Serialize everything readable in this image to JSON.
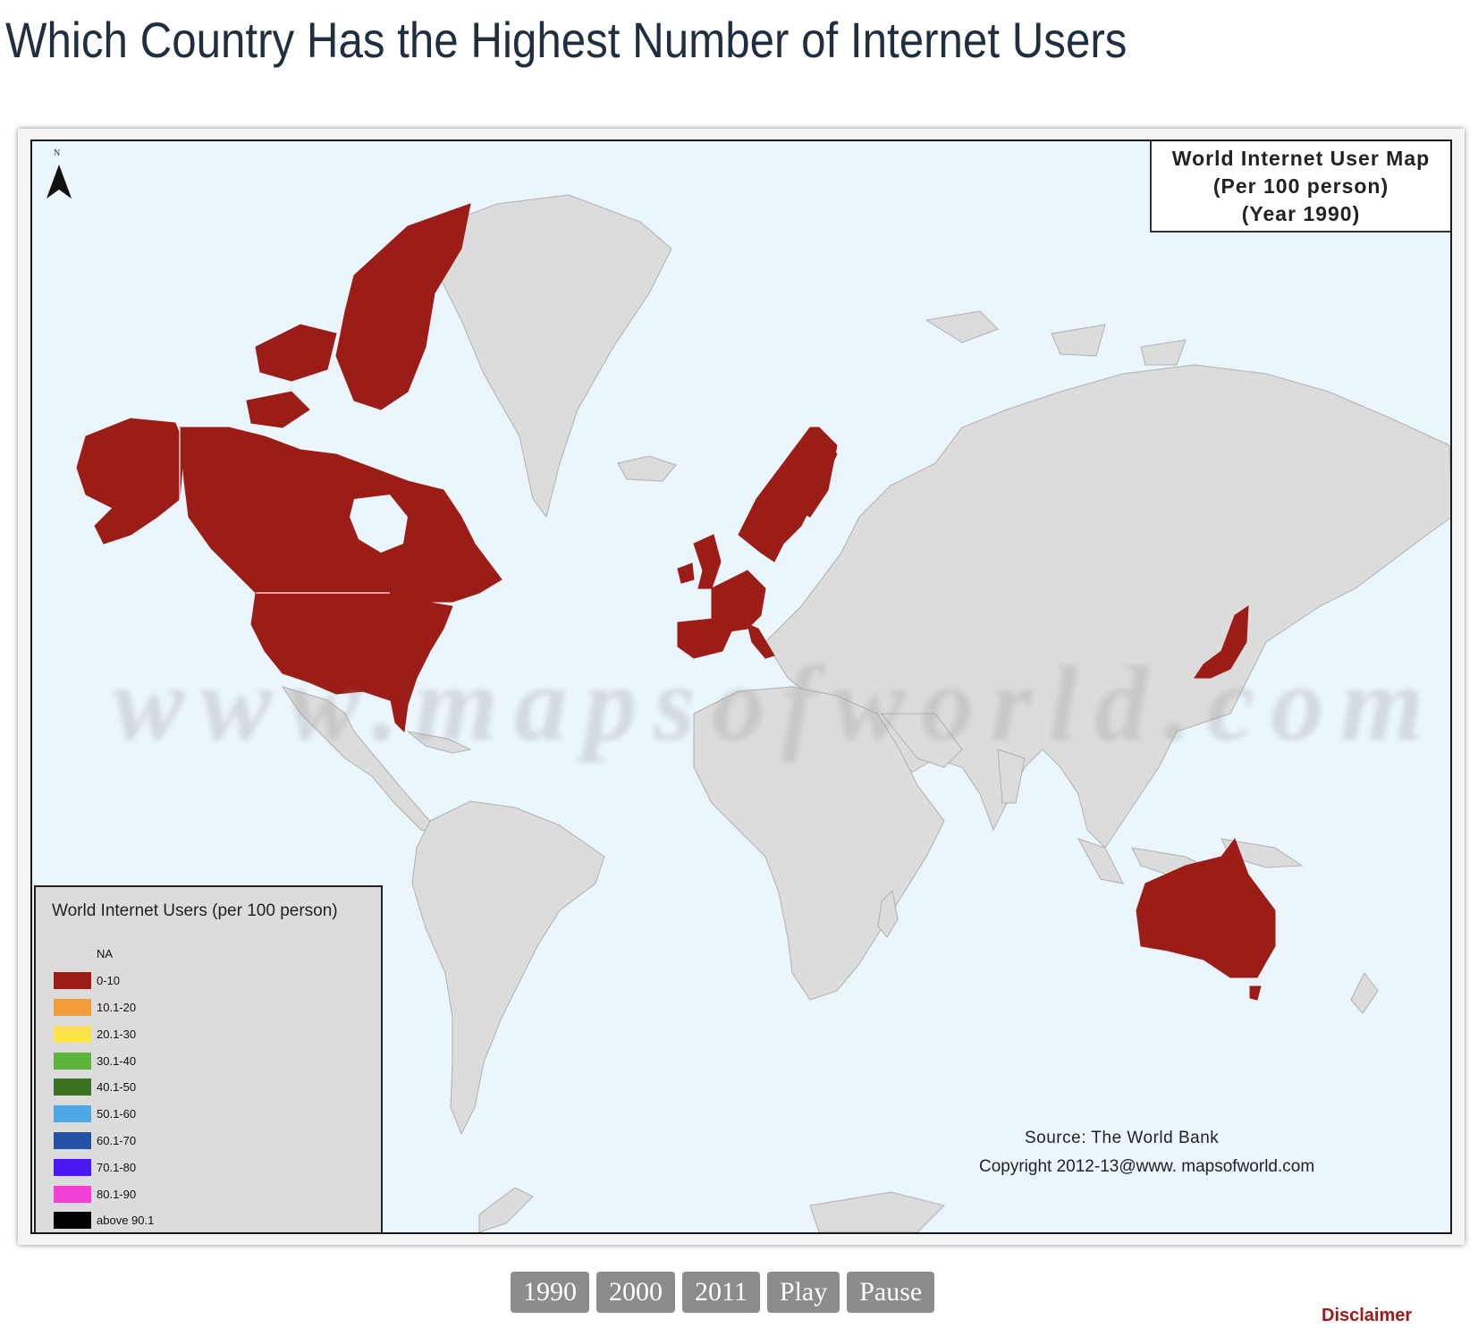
{
  "page": {
    "title": "Which Country Has the Highest Number of Internet Users"
  },
  "map": {
    "title_lines": [
      "World Internet User Map",
      "(Per 100 person)",
      "(Year 1990)"
    ],
    "north_label": "N",
    "watermark": "www.mapsofworld.com",
    "source": "Source: The World Bank",
    "copyright": "Copyright 2012-13@www. mapsofworld.com",
    "colors": {
      "ocean": "#eaf6fc",
      "land_na": "#dcdcdc",
      "highlight": "#9c1c17"
    },
    "highlighted_regions": [
      "Canada",
      "United States",
      "Alaska",
      "Norway",
      "Sweden",
      "Finland",
      "United Kingdom",
      "Ireland",
      "France",
      "Spain",
      "Germany",
      "Italy",
      "Switzerland",
      "Japan",
      "Australia"
    ],
    "legend": {
      "title": "World Internet Users (per 100 person)",
      "items": [
        {
          "label": "NA",
          "color": "#dcdcdc"
        },
        {
          "label": "0-10",
          "color": "#9c1c17"
        },
        {
          "label": "10.1-20",
          "color": "#f39a3b"
        },
        {
          "label": "20.1-30",
          "color": "#fbe44a"
        },
        {
          "label": "30.1-40",
          "color": "#5eb33a"
        },
        {
          "label": "40.1-50",
          "color": "#3c7121"
        },
        {
          "label": "50.1-60",
          "color": "#4fa8e5"
        },
        {
          "label": "60.1-70",
          "color": "#2453a6"
        },
        {
          "label": "70.1-80",
          "color": "#4a18f5"
        },
        {
          "label": "80.1-90",
          "color": "#f23fd8"
        },
        {
          "label": "above 90.1",
          "color": "#000000"
        }
      ]
    }
  },
  "controls": {
    "buttons": [
      "1990",
      "2000",
      "2011",
      "Play",
      "Pause"
    ]
  },
  "footer": {
    "disclaimer": "Disclaimer"
  }
}
